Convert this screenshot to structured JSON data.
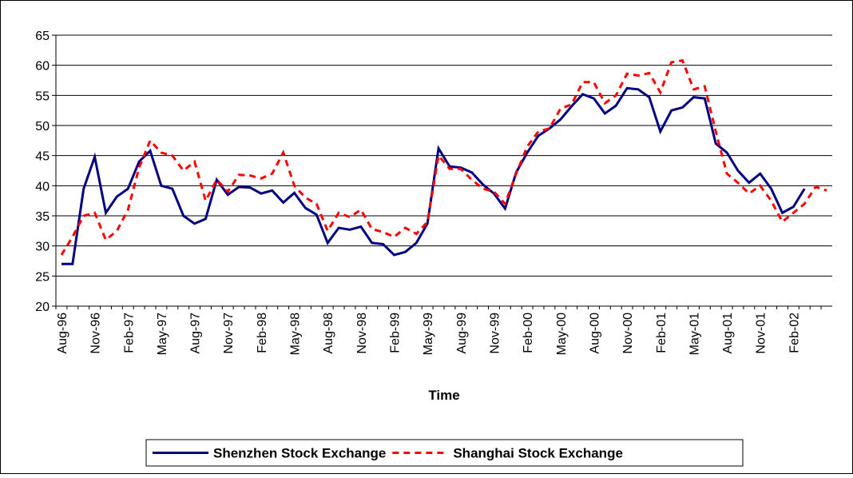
{
  "chart_data": {
    "type": "line",
    "x_label": "Time",
    "categories": [
      "Aug-96",
      null,
      null,
      "Nov-96",
      null,
      null,
      "Feb-97",
      null,
      null,
      "May-97",
      null,
      null,
      "Aug-97",
      null,
      null,
      "Nov-97",
      null,
      null,
      "Feb-98",
      null,
      null,
      "May-98",
      null,
      null,
      "Aug-98",
      null,
      null,
      "Nov-98",
      null,
      null,
      "Feb-99",
      null,
      null,
      "May-99",
      null,
      null,
      "Aug-99",
      null,
      null,
      "Nov-99",
      null,
      null,
      "Feb-00",
      null,
      null,
      "May-00",
      null,
      null,
      "Aug-00",
      null,
      null,
      "Nov-00",
      null,
      null,
      "Feb-01",
      null,
      null,
      "May-01",
      null,
      null,
      "Aug-01",
      null,
      null,
      "Nov-01",
      null,
      null,
      "Feb-02",
      null,
      null,
      null
    ],
    "series": [
      {
        "name": "Shenzhen Stock Exchange",
        "color": "#000080",
        "dashed": false,
        "values": [
          27,
          27,
          39.5,
          44.8,
          35.5,
          38.2,
          39.5,
          44,
          45.8,
          40,
          39.5,
          35,
          33.7,
          34.5,
          41,
          38.5,
          39.8,
          39.7,
          38.7,
          39.2,
          37.2,
          38.8,
          36.3,
          35.2,
          30.5,
          33,
          32.7,
          33.2,
          30.5,
          30.3,
          28.5,
          29,
          30.5,
          33.7,
          46.2,
          43.2,
          43,
          42.2,
          40.2,
          38.7,
          36.2,
          42.2,
          45.5,
          48.3,
          49.5,
          51,
          53.2,
          55.2,
          54.5,
          52,
          53.3,
          56.2,
          56,
          54.7,
          49,
          52.5,
          53,
          54.7,
          54.5,
          47,
          45.5,
          42.5,
          40.5,
          42,
          39.5,
          35.5,
          36.5,
          39.5,
          null,
          null
        ]
      },
      {
        "name": "Shanghai Stock Exchange",
        "color": "#ff0000",
        "dashed": true,
        "values": [
          28.5,
          31.5,
          35,
          35.5,
          31,
          32.5,
          36,
          43,
          47.5,
          45.5,
          45,
          42.5,
          44,
          37.5,
          41,
          39,
          41.8,
          41.7,
          41.2,
          42,
          45.5,
          40,
          38,
          37,
          32.5,
          35.5,
          34.8,
          36,
          32.8,
          32.3,
          31.5,
          33,
          32,
          34,
          45,
          42.8,
          42.8,
          41,
          39.5,
          39,
          37,
          42,
          46.5,
          49,
          49.5,
          52.8,
          53.5,
          57.2,
          57.2,
          53.7,
          55,
          58.6,
          58.3,
          58.7,
          55.5,
          60.5,
          60.8,
          56,
          56.5,
          49,
          42,
          40.5,
          38.7,
          40,
          37.5,
          34,
          35.5,
          37,
          39.8,
          39.2
        ]
      }
    ],
    "ylim": [
      20,
      65
    ],
    "yticks": [
      20,
      25,
      30,
      35,
      40,
      45,
      50,
      55,
      60,
      65
    ],
    "grid": true,
    "legend": "bottom"
  }
}
